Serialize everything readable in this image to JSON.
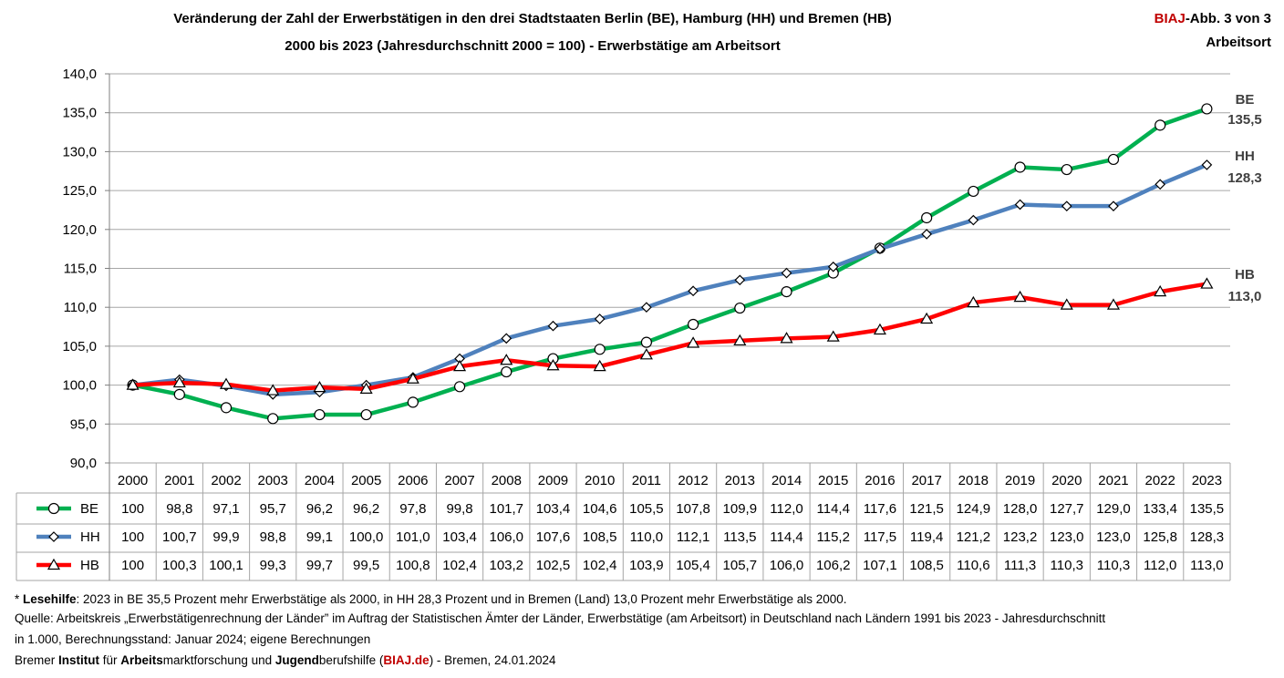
{
  "header": {
    "title_line1": "Veränderung der Zahl der Erwerbstätigen in den drei Stadtstaaten Berlin (BE), Hamburg (HH) und Bremen (HB)",
    "title_line2": "2000 bis 2023 (Jahresdurchschnitt 2000 = 100) - Erwerbstätige am Arbeitsort",
    "badge_brand": "BIAJ",
    "badge_rest": "-Abb. 3 von 3",
    "badge_line2": "Arbeitsort"
  },
  "chart_data": {
    "type": "line",
    "x": [
      "2000",
      "2001",
      "2002",
      "2003",
      "2004",
      "2005",
      "2006",
      "2007",
      "2008",
      "2009",
      "2010",
      "2011",
      "2012",
      "2013",
      "2014",
      "2015",
      "2016",
      "2017",
      "2018",
      "2019",
      "2020",
      "2021",
      "2022",
      "2023"
    ],
    "ylim": [
      90,
      140
    ],
    "yticks": [
      "90,0",
      "95,0",
      "100,0",
      "105,0",
      "110,0",
      "115,0",
      "120,0",
      "125,0",
      "130,0",
      "135,0",
      "140,0"
    ],
    "grid": true,
    "series": [
      {
        "name": "BE",
        "color": "#00b050",
        "marker": "circle",
        "values": [
          100,
          98.8,
          97.1,
          95.7,
          96.2,
          96.2,
          97.8,
          99.8,
          101.7,
          103.4,
          104.6,
          105.5,
          107.8,
          109.9,
          112.0,
          114.4,
          117.6,
          121.5,
          124.9,
          128.0,
          127.7,
          129.0,
          133.4,
          135.5
        ],
        "labels": [
          "100",
          "98,8",
          "97,1",
          "95,7",
          "96,2",
          "96,2",
          "97,8",
          "99,8",
          "101,7",
          "103,4",
          "104,6",
          "105,5",
          "107,8",
          "109,9",
          "112,0",
          "114,4",
          "117,6",
          "121,5",
          "124,9",
          "128,0",
          "127,7",
          "129,0",
          "133,4",
          "135,5"
        ],
        "end_label": "135,5"
      },
      {
        "name": "HH",
        "color": "#4f81bd",
        "marker": "diamond",
        "values": [
          100,
          100.7,
          99.9,
          98.8,
          99.1,
          100.0,
          101.0,
          103.4,
          106.0,
          107.6,
          108.5,
          110.0,
          112.1,
          113.5,
          114.4,
          115.2,
          117.5,
          119.4,
          121.2,
          123.2,
          123.0,
          123.0,
          125.8,
          128.3
        ],
        "labels": [
          "100",
          "100,7",
          "99,9",
          "98,8",
          "99,1",
          "100,0",
          "101,0",
          "103,4",
          "106,0",
          "107,6",
          "108,5",
          "110,0",
          "112,1",
          "113,5",
          "114,4",
          "115,2",
          "117,5",
          "119,4",
          "121,2",
          "123,2",
          "123,0",
          "123,0",
          "125,8",
          "128,3"
        ],
        "end_label": "128,3"
      },
      {
        "name": "HB",
        "color": "#ff0000",
        "marker": "triangle",
        "values": [
          100,
          100.3,
          100.1,
          99.3,
          99.7,
          99.5,
          100.8,
          102.4,
          103.2,
          102.5,
          102.4,
          103.9,
          105.4,
          105.7,
          106.0,
          106.2,
          107.1,
          108.5,
          110.6,
          111.3,
          110.3,
          110.3,
          112.0,
          113.0
        ],
        "labels": [
          "100",
          "100,3",
          "100,1",
          "99,3",
          "99,7",
          "99,5",
          "100,8",
          "102,4",
          "103,2",
          "102,5",
          "102,4",
          "103,9",
          "105,4",
          "105,7",
          "106,0",
          "106,2",
          "107,1",
          "108,5",
          "110,6",
          "111,3",
          "110,3",
          "110,3",
          "112,0",
          "113,0"
        ],
        "end_label": "113,0"
      }
    ]
  },
  "footer": {
    "note_star": "* ",
    "note_bold": "Lesehilfe",
    "note_text": ": 2023 in BE 35,5 Prozent mehr Erwerbstätige als 2000, in HH 28,3 Prozent und in Bremen (Land) 13,0 Prozent mehr Erwerbstätige als 2000.",
    "source_line1": "Quelle: Arbeitskreis „Erwerbstätigenrechnung der Länder” im Auftrag der Statistischen Ämter der Länder, Erwerbstätige (am Arbeitsort) in Deutschland nach Ländern 1991 bis 2023 - Jahresdurchschnitt",
    "source_line2": "in 1.000, Berechnungsstand: Januar 2024; eigene Berechnungen",
    "credit_p1": "Bremer ",
    "credit_b1": "Institut",
    "credit_p2": " für ",
    "credit_b2": "Arbeits",
    "credit_p3": "marktforschung und ",
    "credit_b3": "Jugend",
    "credit_p4": "berufshilfe (",
    "credit_link": "BIAJ.de",
    "credit_p5": ") - Bremen, 24.01.2024"
  }
}
